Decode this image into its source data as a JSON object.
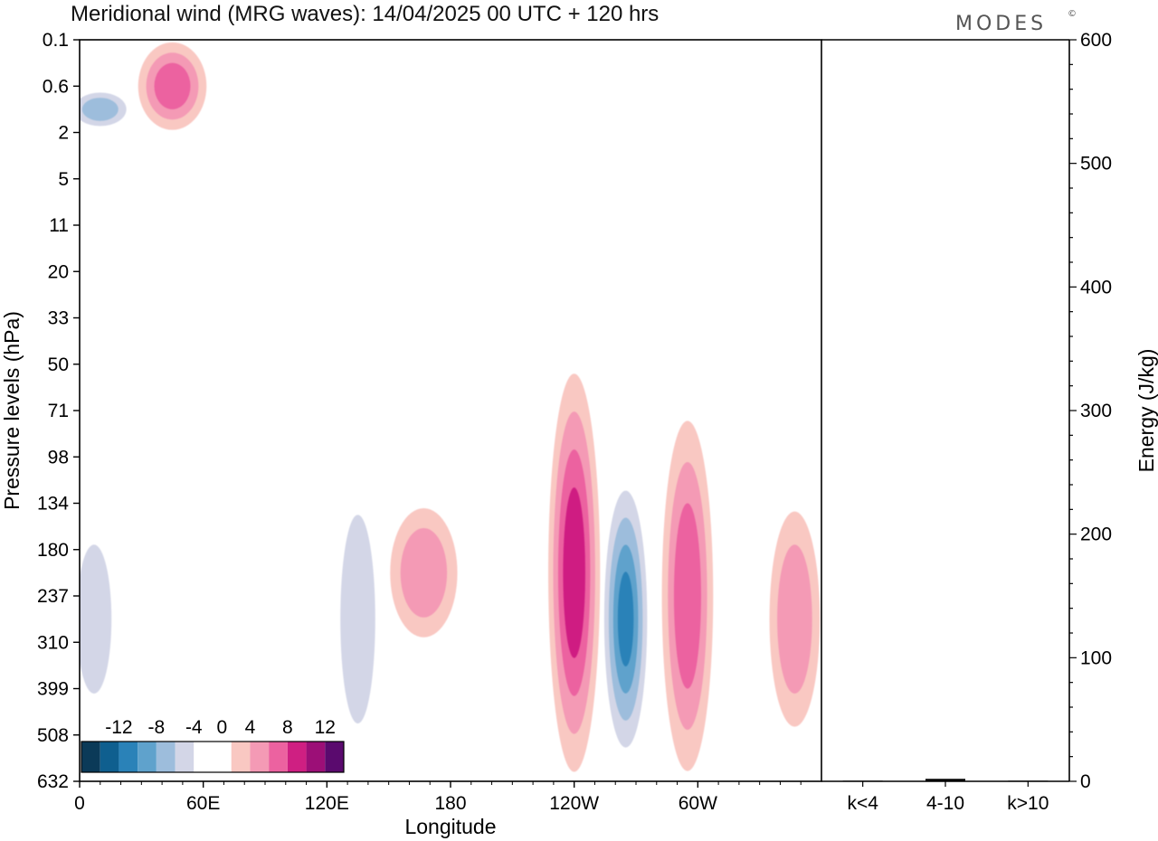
{
  "header": {
    "title": "Meridional wind (MRG waves):  14/04/2025  00 UTC  + 120 hrs",
    "brand": "MODES",
    "brand_mark": "©"
  },
  "chart_data": [
    {
      "type": "heatmap",
      "title": "Meridional wind (MRG waves):  14/04/2025  00 UTC  + 120 hrs",
      "xlabel": "Longitude",
      "ylabel": "Pressure levels (hPa)",
      "x_ticks": [
        "0",
        "60E",
        "120E",
        "180",
        "120W",
        "60W"
      ],
      "x_tick_degrees": [
        0,
        60,
        120,
        180,
        240,
        300
      ],
      "xlim_degrees": [
        0,
        360
      ],
      "y_ticks": [
        "0.1",
        "0.6",
        "2",
        "5",
        "11",
        "20",
        "33",
        "50",
        "71",
        "98",
        "134",
        "180",
        "237",
        "310",
        "399",
        "508",
        "632"
      ],
      "y_scale": "model levels (top 0.1 hPa, bottom 632 hPa)",
      "colorbar": {
        "tick_labels": [
          "-12",
          "-8",
          "-4",
          "0",
          "4",
          "8",
          "12"
        ],
        "levels": [
          -14,
          -12,
          -10,
          -8,
          -6,
          -4,
          -2,
          2,
          4,
          6,
          8,
          10,
          12,
          14
        ],
        "colors": [
          "#0b3a58",
          "#0f5f8f",
          "#2a82b8",
          "#5fa2cc",
          "#9dbddc",
          "#d3d6e7",
          "#ffffff",
          "#ffffff",
          "#f9c8c2",
          "#f49ab5",
          "#ec62a0",
          "#cf1f82",
          "#9c0f77",
          "#5a0a6e"
        ],
        "placement": "bottom-left inset"
      },
      "features": [
        {
          "sign": "negative",
          "lon": 265,
          "p_top": 98,
          "p_bottom": 632,
          "peak": -10
        },
        {
          "sign": "positive",
          "lon": 240,
          "p_top": 50,
          "p_bottom": 632,
          "peak": 9
        },
        {
          "sign": "positive",
          "lon": 295,
          "p_top": 71,
          "p_bottom": 632,
          "peak": 7
        },
        {
          "sign": "positive",
          "lon": 347,
          "p_top": 134,
          "p_bottom": 508,
          "peak": 5
        },
        {
          "sign": "negative",
          "lon": 7,
          "p_top": 134,
          "p_bottom": 508,
          "peak": -5
        },
        {
          "sign": "negative",
          "lon": 135,
          "p_top": 98,
          "p_bottom": 632,
          "peak": -5
        },
        {
          "sign": "positive",
          "lon": 167,
          "p_top": 134,
          "p_bottom": 310,
          "peak": 5
        },
        {
          "sign": "negative",
          "lon": 10,
          "p_top": 0.6,
          "p_bottom": 2,
          "peak": -7
        },
        {
          "sign": "positive",
          "lon": 45,
          "p_top": 0.1,
          "p_bottom": 2,
          "peak": 7
        }
      ]
    },
    {
      "type": "bar",
      "categories": [
        "k<4",
        "4-10",
        "k>10"
      ],
      "values": [
        0.5,
        2,
        0.5
      ],
      "ylabel": "Energy (J/kg)",
      "ylim": [
        0,
        600
      ],
      "y_ticks": [
        "0",
        "100",
        "200",
        "300",
        "400",
        "500",
        "600"
      ]
    }
  ]
}
